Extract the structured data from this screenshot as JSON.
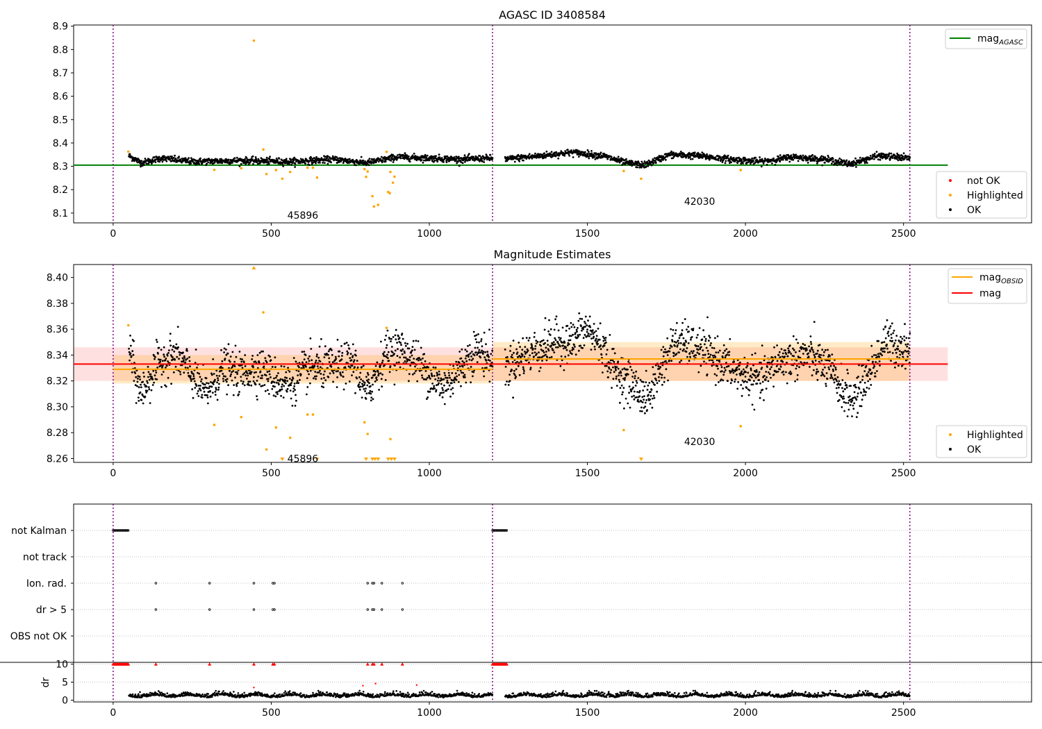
{
  "chart_data": [
    {
      "type": "scatter",
      "title": "AGASC ID 3408584",
      "xlim": [
        -125,
        2905
      ],
      "ylim": [
        8.058,
        8.905
      ],
      "xticks": [
        0,
        500,
        1000,
        1500,
        2000,
        2500
      ],
      "xtick_labels": [
        "0",
        "500",
        "1000",
        "1500",
        "2000",
        "2500"
      ],
      "yticks": [
        8.1,
        8.2,
        8.3,
        8.4,
        8.5,
        8.6,
        8.7,
        8.8,
        8.9
      ],
      "ytick_labels": [
        "8.1",
        "8.2",
        "8.3",
        "8.4",
        "8.5",
        "8.6",
        "8.7",
        "8.8",
        "8.9"
      ],
      "obs_boundaries": [
        0,
        1200,
        2520
      ],
      "obs_labels": [
        {
          "text": "45896",
          "x": 600,
          "y": 8.09
        },
        {
          "text": "42030",
          "x": 1855,
          "y": 8.15
        }
      ],
      "reference_lines": [
        {
          "name": "mag_AGASC",
          "value": 8.305,
          "x": [
            -125,
            2640
          ],
          "color": "#008000"
        }
      ],
      "series": [
        {
          "name": "OK",
          "color": "#000000",
          "segments": [
            {
              "x": [
                50,
                1200
              ],
              "waypoints": [
                [
                  50,
                  8.345
                ],
                [
                  90,
                  8.315
                ],
                [
                  150,
                  8.335
                ],
                [
                  250,
                  8.32
                ],
                [
                  400,
                  8.325
                ],
                [
                  560,
                  8.32
                ],
                [
                  700,
                  8.33
                ],
                [
                  800,
                  8.315
                ],
                [
                  900,
                  8.34
                ],
                [
                  1000,
                  8.335
                ],
                [
                  1100,
                  8.33
                ],
                [
                  1200,
                  8.335
                ]
              ]
            },
            {
              "x": [
                1240,
                2520
              ],
              "waypoints": [
                [
                  1240,
                  8.33
                ],
                [
                  1350,
                  8.345
                ],
                [
                  1450,
                  8.36
                ],
                [
                  1550,
                  8.345
                ],
                [
                  1620,
                  8.315
                ],
                [
                  1680,
                  8.305
                ],
                [
                  1760,
                  8.35
                ],
                [
                  1850,
                  8.345
                ],
                [
                  1950,
                  8.33
                ],
                [
                  2050,
                  8.32
                ],
                [
                  2150,
                  8.34
                ],
                [
                  2250,
                  8.33
                ],
                [
                  2330,
                  8.31
                ],
                [
                  2420,
                  8.345
                ],
                [
                  2520,
                  8.335
                ]
              ]
            }
          ]
        },
        {
          "name": "Highlighted",
          "color": "#ffa500",
          "points": [
            [
              48,
              8.363
            ],
            [
              445,
              8.838
            ],
            [
              475,
              8.372
            ],
            [
              320,
              8.285
            ],
            [
              405,
              8.292
            ],
            [
              485,
              8.267
            ],
            [
              515,
              8.284
            ],
            [
              535,
              8.247
            ],
            [
              560,
              8.276
            ],
            [
              615,
              8.294
            ],
            [
              632,
              8.294
            ],
            [
              645,
              8.252
            ],
            [
              795,
              8.288
            ],
            [
              800,
              8.255
            ],
            [
              805,
              8.278
            ],
            [
              820,
              8.172
            ],
            [
              825,
              8.128
            ],
            [
              838,
              8.135
            ],
            [
              865,
              8.362
            ],
            [
              870,
              8.19
            ],
            [
              875,
              8.185
            ],
            [
              877,
              8.276
            ],
            [
              885,
              8.23
            ],
            [
              890,
              8.256
            ],
            [
              1615,
              8.28
            ],
            [
              1670,
              8.247
            ],
            [
              1985,
              8.284
            ]
          ]
        },
        {
          "name": "not OK",
          "color": "#ff0000",
          "points": []
        }
      ],
      "legend": [
        {
          "position": "top-right",
          "entries": [
            {
              "label": "mag",
              "sub": "AGASC",
              "style": "line",
              "color": "#008000"
            }
          ]
        },
        {
          "position": "bottom-right",
          "entries": [
            {
              "label": "not OK",
              "style": "dot",
              "color": "#ff0000"
            },
            {
              "label": "Highlighted",
              "style": "dot",
              "color": "#ffa500"
            },
            {
              "label": "OK",
              "style": "dot",
              "color": "#000000"
            }
          ]
        }
      ]
    },
    {
      "type": "scatter",
      "title": "Magnitude Estimates",
      "xlim": [
        -125,
        2905
      ],
      "ylim": [
        8.257,
        8.41
      ],
      "xticks": [
        0,
        500,
        1000,
        1500,
        2000,
        2500
      ],
      "xtick_labels": [
        "0",
        "500",
        "1000",
        "1500",
        "2000",
        "2500"
      ],
      "yticks": [
        8.26,
        8.28,
        8.3,
        8.32,
        8.34,
        8.36,
        8.38,
        8.4
      ],
      "ytick_labels": [
        "8.26",
        "8.28",
        "8.30",
        "8.32",
        "8.34",
        "8.36",
        "8.38",
        "8.40"
      ],
      "obs_boundaries": [
        0,
        1200,
        2520
      ],
      "obs_labels": [
        {
          "text": "45896",
          "x": 600,
          "y": 8.26
        },
        {
          "text": "42030",
          "x": 1855,
          "y": 8.273
        }
      ],
      "reference_lines": [
        {
          "name": "mag",
          "value": 8.333,
          "x": [
            -125,
            2640
          ],
          "color": "#ff0000",
          "band": [
            8.32,
            8.346
          ]
        },
        {
          "name": "mag_OBSID",
          "value": 8.329,
          "x": [
            0,
            1200
          ],
          "color": "#ffa500",
          "band": [
            8.318,
            8.34
          ]
        },
        {
          "name": "mag_OBSID",
          "value": 8.337,
          "x": [
            1200,
            2520
          ],
          "color": "#ffa500",
          "band": [
            8.32,
            8.35
          ]
        }
      ],
      "series": [
        {
          "name": "OK",
          "color": "#000000",
          "segments": [
            {
              "x": [
                50,
                1200
              ],
              "waypoints": [
                [
                  50,
                  8.345
                ],
                [
                  75,
                  8.32
                ],
                [
                  90,
                  8.31
                ],
                [
                  110,
                  8.32
                ],
                [
                  150,
                  8.335
                ],
                [
                  200,
                  8.34
                ],
                [
                  250,
                  8.325
                ],
                [
                  290,
                  8.31
                ],
                [
                  350,
                  8.33
                ],
                [
                  400,
                  8.325
                ],
                [
                  460,
                  8.33
                ],
                [
                  520,
                  8.32
                ],
                [
                  560,
                  8.318
                ],
                [
                  620,
                  8.33
                ],
                [
                  700,
                  8.33
                ],
                [
                  760,
                  8.335
                ],
                [
                  800,
                  8.31
                ],
                [
                  860,
                  8.34
                ],
                [
                  900,
                  8.345
                ],
                [
                  960,
                  8.335
                ],
                [
                  1000,
                  8.325
                ],
                [
                  1040,
                  8.315
                ],
                [
                  1100,
                  8.33
                ],
                [
                  1150,
                  8.345
                ],
                [
                  1200,
                  8.335
                ]
              ]
            },
            {
              "x": [
                1240,
                2520
              ],
              "waypoints": [
                [
                  1240,
                  8.33
                ],
                [
                  1300,
                  8.34
                ],
                [
                  1400,
                  8.35
                ],
                [
                  1450,
                  8.35
                ],
                [
                  1500,
                  8.36
                ],
                [
                  1550,
                  8.345
                ],
                [
                  1580,
                  8.33
                ],
                [
                  1630,
                  8.32
                ],
                [
                  1690,
                  8.305
                ],
                [
                  1730,
                  8.33
                ],
                [
                  1780,
                  8.35
                ],
                [
                  1850,
                  8.345
                ],
                [
                  1920,
                  8.335
                ],
                [
                  1980,
                  8.325
                ],
                [
                  2050,
                  8.32
                ],
                [
                  2100,
                  8.335
                ],
                [
                  2200,
                  8.34
                ],
                [
                  2260,
                  8.33
                ],
                [
                  2300,
                  8.315
                ],
                [
                  2340,
                  8.305
                ],
                [
                  2400,
                  8.33
                ],
                [
                  2440,
                  8.35
                ],
                [
                  2520,
                  8.345
                ]
              ]
            }
          ]
        },
        {
          "name": "Highlighted",
          "color": "#ffa500",
          "points": [
            [
              48,
              8.363
            ],
            [
              475,
              8.373
            ],
            [
              320,
              8.286
            ],
            [
              405,
              8.292
            ],
            [
              485,
              8.267
            ],
            [
              515,
              8.284
            ],
            [
              560,
              8.276
            ],
            [
              615,
              8.294
            ],
            [
              632,
              8.294
            ],
            [
              795,
              8.288
            ],
            [
              805,
              8.279
            ],
            [
              865,
              8.361
            ],
            [
              877,
              8.275
            ],
            [
              1615,
              8.282
            ],
            [
              1985,
              8.285
            ]
          ]
        },
        {
          "name": "Highlighted (off-scale)",
          "color": "#ffa500",
          "up_markers": [
            [
              445,
              8.41
            ]
          ],
          "down_markers": [
            [
              535,
              8.257
            ],
            [
              645,
              8.257
            ],
            [
              800,
              8.257
            ],
            [
              820,
              8.257
            ],
            [
              828,
              8.257
            ],
            [
              838,
              8.257
            ],
            [
              870,
              8.257
            ],
            [
              880,
              8.257
            ],
            [
              890,
              8.257
            ],
            [
              1670,
              8.257
            ]
          ]
        }
      ],
      "legend": [
        {
          "position": "top-right",
          "entries": [
            {
              "label": "mag",
              "sub": "OBSID",
              "style": "line",
              "color": "#ffa500"
            },
            {
              "label": "mag",
              "style": "line",
              "color": "#ff0000"
            }
          ]
        },
        {
          "position": "bottom-right",
          "entries": [
            {
              "label": "Highlighted",
              "style": "dot",
              "color": "#ffa500"
            },
            {
              "label": "OK",
              "style": "dot",
              "color": "#000000"
            }
          ]
        }
      ]
    },
    {
      "type": "scatter",
      "title": "",
      "xlim": [
        -125,
        2905
      ],
      "category_rows": [
        "not Kalman",
        "not track",
        "Ion. rad.",
        "dr > 5",
        "OBS not OK"
      ],
      "obs_boundaries": [
        0,
        1200,
        2520
      ],
      "rows": {
        "not Kalman": [
          [
            0,
            50
          ],
          [
            1200,
            1245
          ]
        ],
        "not track": [],
        "Ion. rad.": [
          135,
          305,
          445,
          505,
          510,
          805,
          820,
          825,
          850,
          915
        ],
        "dr > 5": [
          135,
          305,
          445,
          505,
          510,
          805,
          820,
          825,
          850,
          915
        ],
        "OBS not OK": []
      },
      "dr_panel": {
        "ylabel": "dr",
        "ylim": [
          -0.5,
          10.5
        ],
        "yticks": [
          0,
          5,
          10
        ],
        "ytick_labels": [
          "0",
          "5",
          "10"
        ],
        "clipped_markers_at_10": [
          [
            0,
            50
          ],
          135,
          305,
          445,
          505,
          510,
          805,
          820,
          825,
          850,
          915,
          [
            1200,
            1245
          ]
        ],
        "red_points": [
          [
            445,
            3.5
          ],
          [
            790,
            4.0
          ],
          [
            830,
            4.6
          ],
          [
            960,
            4.2
          ]
        ],
        "ok_segments": [
          {
            "x": [
              50,
              1200
            ],
            "level": 1.0
          },
          {
            "x": [
              1240,
              2520
            ],
            "level": 1.0
          }
        ]
      }
    }
  ]
}
